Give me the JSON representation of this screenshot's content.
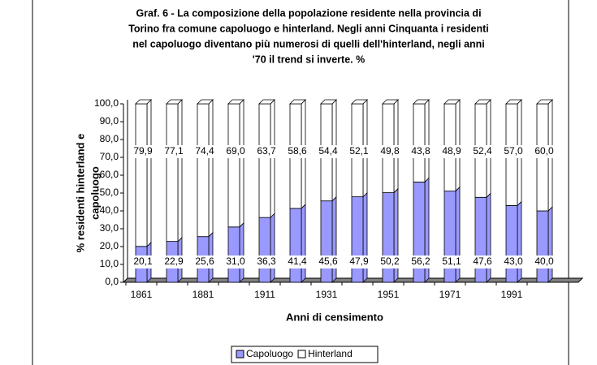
{
  "chart_data": {
    "type": "bar",
    "stacked": true,
    "title": [
      "Graf. 6 - La composizione della popolazione residente nella provincia di",
      "Torino fra comune capoluogo e hinterland. Negli anni Cinquanta i residenti",
      "nel capoluogo diventano più numerosi di quelli dell'hinterland, negli anni",
      "'70 il trend si inverte. %"
    ],
    "x_label": "Anni di censimento",
    "y_label": [
      "% residenti hinterland e",
      "capoluogo"
    ],
    "categories": [
      "1861",
      null,
      "1881",
      null,
      "1911",
      null,
      "1931",
      null,
      "1951",
      null,
      "1971",
      null,
      "1991",
      null
    ],
    "series": [
      {
        "name": "Capoluogo",
        "color": "#9999ff",
        "values": [
          20.1,
          22.9,
          25.6,
          31.0,
          36.3,
          41.4,
          45.6,
          47.9,
          50.2,
          56.2,
          51.1,
          47.6,
          43.0,
          40.0
        ],
        "value_labels": [
          "20,1",
          "22,9",
          "25,6",
          "31,0",
          "36,3",
          "41,4",
          "45,6",
          "47,9",
          "50,2",
          "56,2",
          "51,1",
          "47,6",
          "43,0",
          "40,0"
        ]
      },
      {
        "name": "Hinterland",
        "color": "#ffffff",
        "values": [
          79.9,
          77.1,
          74.4,
          69.0,
          63.7,
          58.6,
          54.4,
          52.1,
          49.8,
          43.8,
          48.9,
          52.4,
          57.0,
          60.0
        ],
        "value_labels": [
          "79,9",
          "77,1",
          "74,4",
          "69,0",
          "63,7",
          "58,6",
          "54,4",
          "52,1",
          "49,8",
          "43,8",
          "48,9",
          "52,4",
          "57,0",
          "60,0"
        ]
      }
    ],
    "ylim": [
      0,
      100
    ],
    "yticks": [
      {
        "value": 0,
        "label": "0,0"
      },
      {
        "value": 10,
        "label": "10,0"
      },
      {
        "value": 20,
        "label": "20,0"
      },
      {
        "value": 30,
        "label": "30,0"
      },
      {
        "value": 40,
        "label": "40,0"
      },
      {
        "value": 50,
        "label": "50,0"
      },
      {
        "value": 60,
        "label": "60,0"
      },
      {
        "value": 70,
        "label": "70,0"
      },
      {
        "value": 80,
        "label": "80,0"
      },
      {
        "value": 90,
        "label": "90,0"
      },
      {
        "value": {
          "value": 100,
          "label": "100,0"
        },
        "label": "100,0"
      }
    ],
    "legend": "bottom"
  }
}
